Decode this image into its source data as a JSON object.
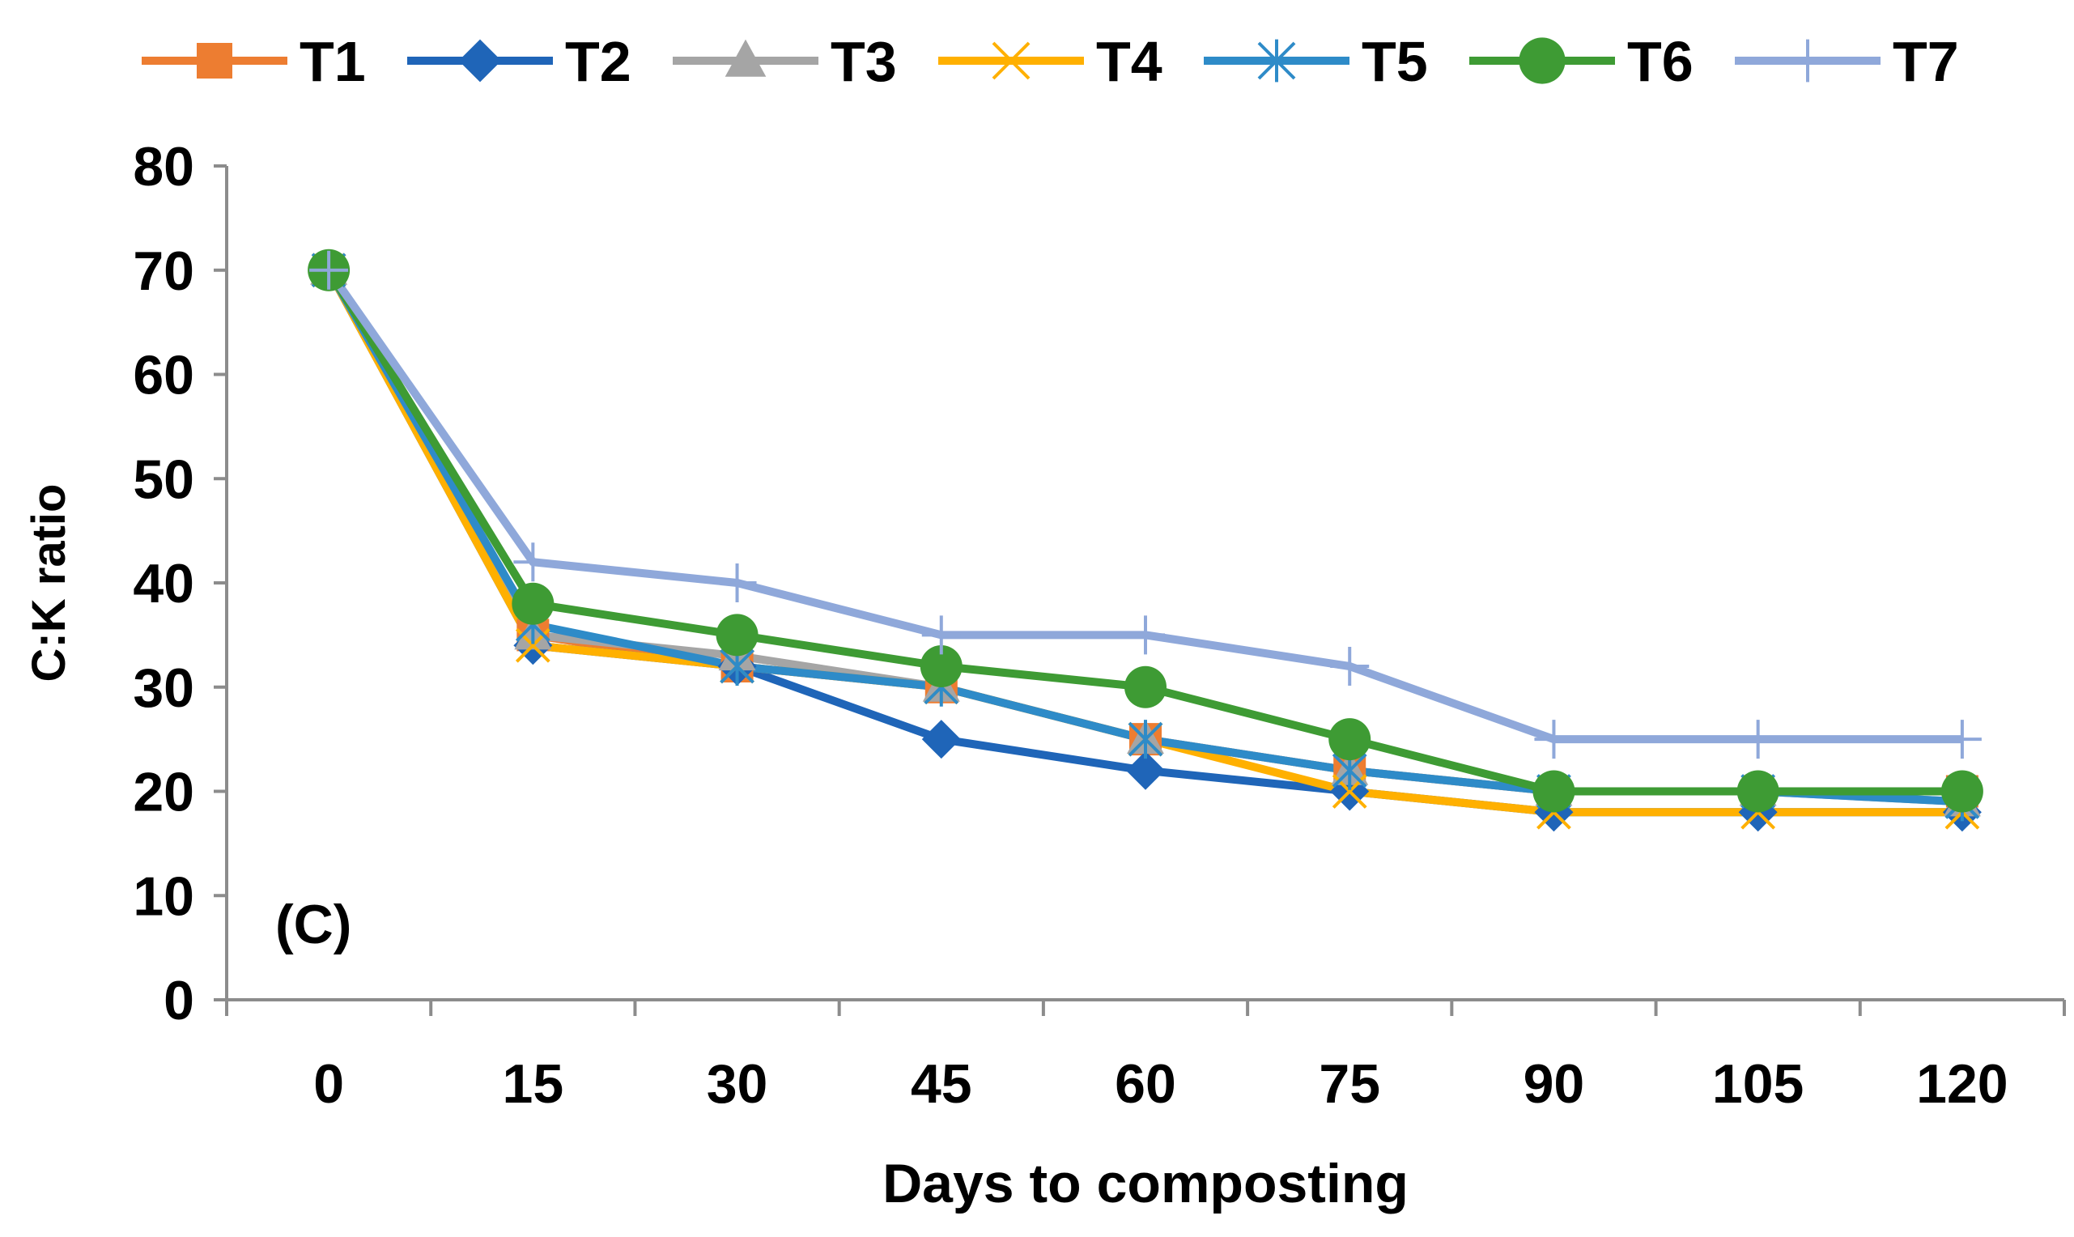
{
  "chart_data": {
    "type": "line",
    "title": "",
    "panel_label": "(C)",
    "xlabel": "Days to composting",
    "ylabel": "C:K ratio",
    "categories": [
      "0",
      "15",
      "30",
      "45",
      "60",
      "75",
      "90",
      "105",
      "120"
    ],
    "ylim": [
      0,
      80
    ],
    "yticks": [
      0,
      10,
      20,
      30,
      40,
      50,
      60,
      70,
      80
    ],
    "grid": false,
    "legend_position": "top",
    "series": [
      {
        "name": "T1",
        "marker": "square",
        "color": "#ED7D31",
        "values": [
          70,
          35,
          32,
          30,
          25,
          22,
          20,
          20,
          20
        ]
      },
      {
        "name": "T2",
        "marker": "diamond",
        "color": "#1F65B8",
        "values": [
          70,
          34,
          32,
          25,
          22,
          20,
          18,
          18,
          18
        ]
      },
      {
        "name": "T3",
        "marker": "triangle",
        "color": "#A5A5A5",
        "values": [
          70,
          35,
          33,
          30,
          25,
          22,
          20,
          20,
          19
        ]
      },
      {
        "name": "T4",
        "marker": "x",
        "color": "#FFB000",
        "values": [
          70,
          34,
          32,
          30,
          25,
          20,
          18,
          18,
          18
        ]
      },
      {
        "name": "T5",
        "marker": "star",
        "color": "#2E8BC8",
        "values": [
          70,
          36,
          32,
          30,
          25,
          22,
          20,
          20,
          19
        ]
      },
      {
        "name": "T6",
        "marker": "circle",
        "color": "#3E9B34",
        "values": [
          70,
          38,
          35,
          32,
          30,
          25,
          20,
          20,
          20
        ]
      },
      {
        "name": "T7",
        "marker": "plus",
        "color": "#8FA8DA",
        "values": [
          70,
          42,
          40,
          35,
          35,
          32,
          25,
          25,
          25
        ]
      }
    ]
  }
}
